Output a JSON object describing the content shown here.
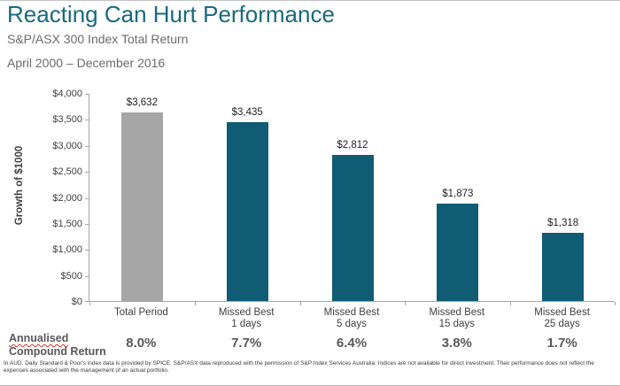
{
  "header": {
    "title": "Reacting Can Hurt Performance",
    "subtitle": "S&P/ASX 300 Index Total Return",
    "date_range": "April 2000 – December 2016"
  },
  "chart_data": {
    "type": "bar",
    "title": "Reacting Can Hurt Performance",
    "subtitle": "S&P/ASX 300 Index Total Return",
    "period": "April 2000 – December 2016",
    "xlabel": "",
    "ylabel": "Growth of $1000",
    "ylim": [
      0,
      4000
    ],
    "ytick_labels": [
      "$0",
      "$500",
      "$1,000",
      "$1,500",
      "$2,000",
      "$2,500",
      "$3,000",
      "$3,500",
      "$4,000"
    ],
    "grid": "off",
    "legend": "none",
    "bars": [
      {
        "category": "Total Period",
        "value": 3632,
        "value_label": "$3,632",
        "color": "#a6a6a6",
        "annualised_return": "8.0%"
      },
      {
        "category": "Missed Best\n1 days",
        "value": 3435,
        "value_label": "$3,435",
        "color": "#0f5c74",
        "annualised_return": "7.7%"
      },
      {
        "category": "Missed Best\n5 days",
        "value": 2812,
        "value_label": "$2,812",
        "color": "#0f5c74",
        "annualised_return": "6.4%"
      },
      {
        "category": "Missed Best\n15 days",
        "value": 1873,
        "value_label": "$1,873",
        "color": "#0f5c74",
        "annualised_return": "3.8%"
      },
      {
        "category": "Missed Best\n25 days",
        "value": 1318,
        "value_label": "$1,318",
        "color": "#0f5c74",
        "annualised_return": "1.7%"
      }
    ]
  },
  "footer": {
    "annualised_line1": "Annualised",
    "annualised_line2": "Compound Return",
    "footnote": "In AUD. Daily Standard & Poor's index data is provided by SPICE. S&P/ASX data reproduced with the permission of S&P Index Services Australia. Indices are not available for direct investment. Their performance does not reflect the expenses associated with the management of an actual portfolio."
  },
  "colors": {
    "title_teal": "#186a7e",
    "bar_teal": "#0f5c74",
    "bar_gray": "#a6a6a6",
    "axis_gray": "#a6a6a6",
    "text_gray": "#595959",
    "spellcheck_red": "#c0392b"
  }
}
